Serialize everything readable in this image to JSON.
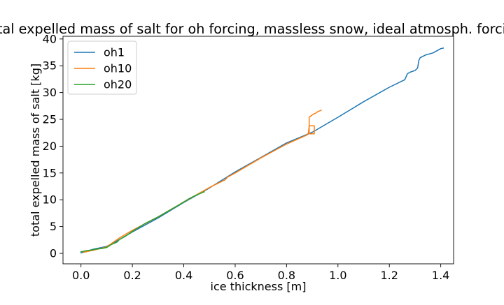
{
  "chart_data": {
    "type": "line",
    "title": "total expelled mass of salt for oh forcing, massless snow, ideal atmosph. forcing",
    "xlabel": "ice thickness [m]",
    "ylabel": "total expelled mass of salt [kg]",
    "xlim": [
      -0.07,
      1.45
    ],
    "ylim": [
      -1.95,
      40.5
    ],
    "xticks": [
      0.0,
      0.2,
      0.4,
      0.6,
      0.8,
      1.0,
      1.2,
      1.4
    ],
    "xtick_labels": [
      "0.0",
      "0.2",
      "0.4",
      "0.6",
      "0.8",
      "1.0",
      "1.2",
      "1.4"
    ],
    "yticks": [
      0,
      5,
      10,
      15,
      20,
      25,
      30,
      35,
      40
    ],
    "ytick_labels": [
      "0",
      "5",
      "10",
      "15",
      "20",
      "25",
      "30",
      "35",
      "40"
    ],
    "grid": false,
    "legend_position": "upper-left",
    "series": [
      {
        "name": "oh1",
        "color": "#1f77b4",
        "points": [
          [
            0.0,
            0.1
          ],
          [
            0.02,
            0.4
          ],
          [
            0.05,
            0.8
          ],
          [
            0.08,
            1.1
          ],
          [
            0.1,
            1.3
          ],
          [
            0.12,
            1.8
          ],
          [
            0.15,
            2.6
          ],
          [
            0.2,
            4.0
          ],
          [
            0.3,
            6.6
          ],
          [
            0.4,
            9.5
          ],
          [
            0.5,
            12.2
          ],
          [
            0.6,
            15.2
          ],
          [
            0.7,
            17.9
          ],
          [
            0.8,
            20.6
          ],
          [
            0.9,
            22.6
          ],
          [
            1.0,
            25.4
          ],
          [
            1.1,
            28.3
          ],
          [
            1.2,
            31.0
          ],
          [
            1.26,
            32.4
          ],
          [
            1.27,
            33.5
          ],
          [
            1.28,
            33.8
          ],
          [
            1.3,
            34.1
          ],
          [
            1.31,
            34.6
          ],
          [
            1.315,
            36.0
          ],
          [
            1.32,
            36.5
          ],
          [
            1.34,
            37.0
          ],
          [
            1.37,
            37.4
          ],
          [
            1.4,
            38.2
          ],
          [
            1.41,
            38.3
          ]
        ]
      },
      {
        "name": "oh10",
        "color": "#ff7f0e",
        "points": [
          [
            0.01,
            0.2
          ],
          [
            0.05,
            0.6
          ],
          [
            0.1,
            1.2
          ],
          [
            0.15,
            2.9
          ],
          [
            0.2,
            4.3
          ],
          [
            0.3,
            6.8
          ],
          [
            0.4,
            9.6
          ],
          [
            0.5,
            12.3
          ],
          [
            0.56,
            13.7
          ],
          [
            0.57,
            14.2
          ],
          [
            0.6,
            15.0
          ],
          [
            0.7,
            17.8
          ],
          [
            0.8,
            20.4
          ],
          [
            0.88,
            22.1
          ],
          [
            0.885,
            22.5
          ],
          [
            0.888,
            23.8
          ],
          [
            0.908,
            23.8
          ],
          [
            0.908,
            22.3
          ],
          [
            0.888,
            22.3
          ],
          [
            0.888,
            25.4
          ],
          [
            0.905,
            26.0
          ],
          [
            0.91,
            26.1
          ],
          [
            0.915,
            26.2
          ],
          [
            0.92,
            26.4
          ],
          [
            0.93,
            26.6
          ],
          [
            0.935,
            26.7
          ]
        ]
      },
      {
        "name": "oh20",
        "color": "#2ca02c",
        "points": [
          [
            0.0,
            0.3
          ],
          [
            0.02,
            0.5
          ],
          [
            0.04,
            0.6
          ],
          [
            0.06,
            0.8
          ],
          [
            0.08,
            0.9
          ],
          [
            0.1,
            1.1
          ],
          [
            0.12,
            1.7
          ],
          [
            0.14,
            2.1
          ],
          [
            0.15,
            2.6
          ],
          [
            0.17,
            3.1
          ],
          [
            0.2,
            4.1
          ],
          [
            0.25,
            5.6
          ],
          [
            0.3,
            6.8
          ],
          [
            0.35,
            8.2
          ],
          [
            0.38,
            9.0
          ],
          [
            0.42,
            10.2
          ],
          [
            0.45,
            10.9
          ],
          [
            0.48,
            11.5
          ]
        ]
      }
    ]
  }
}
